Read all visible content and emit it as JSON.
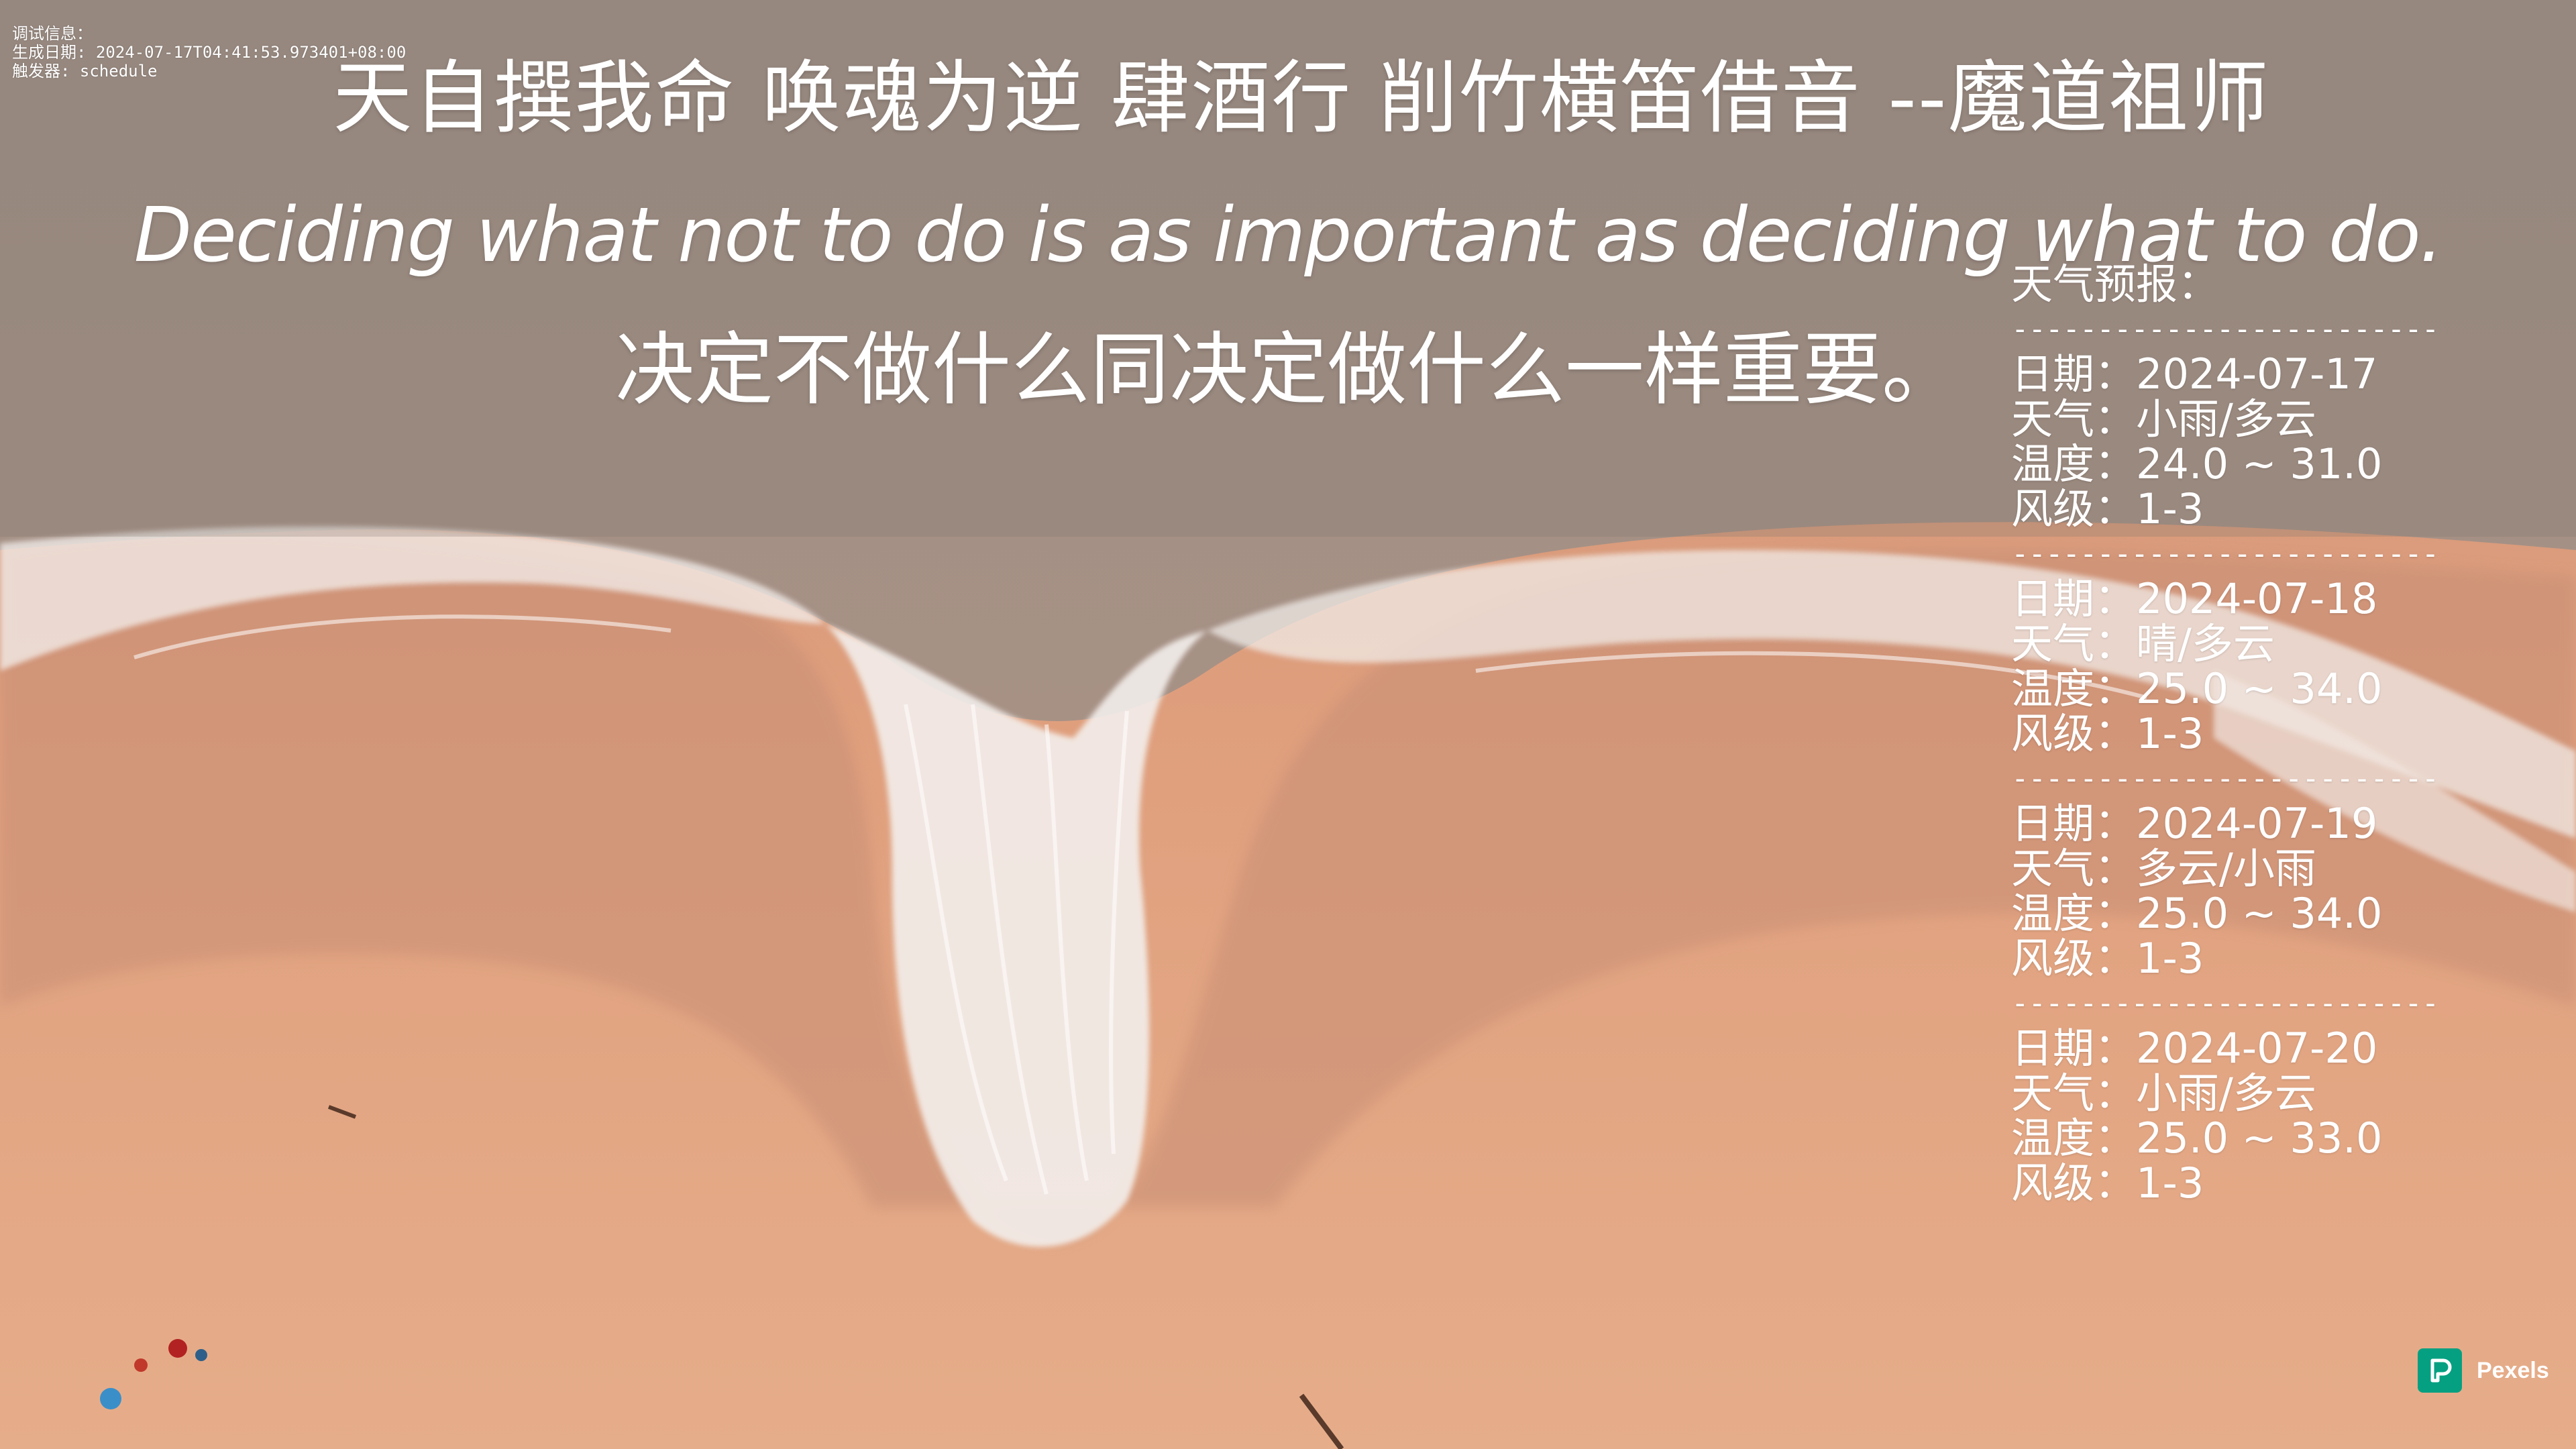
{
  "debug": {
    "title": "调试信息：",
    "generated": "生成日期: 2024-07-17T04:41:53.973401+08:00",
    "trigger": "触发器: schedule"
  },
  "quote": {
    "cn": "天自撰我命 唤魂为逆 肆酒行 削竹横笛借音   --魔道祖师",
    "en": "Deciding what not to do is as important as deciding what to do.",
    "translation": "决定不做什么同决定做什么一样重要。"
  },
  "weather": {
    "title": "天气预报：",
    "separator": "-----------------------------",
    "days": [
      {
        "date": "日期：2024-07-17",
        "weather": "天气：小雨/多云",
        "temp": "温度：24.0 ~ 31.0",
        "wind": "风级：1-3"
      },
      {
        "date": "日期：2024-07-18",
        "weather": "天气：晴/多云",
        "temp": "温度：25.0 ~ 34.0",
        "wind": "风级：1-3"
      },
      {
        "date": "日期：2024-07-19",
        "weather": "天气：多云/小雨",
        "temp": "温度：25.0 ~ 34.0",
        "wind": "风级：1-3"
      },
      {
        "date": "日期：2024-07-20",
        "weather": "天气：小雨/多云",
        "temp": "温度：25.0 ~ 33.0",
        "wind": "风级：1-3"
      }
    ]
  },
  "watermark": {
    "label": "Pexels"
  },
  "colors": {
    "sand": "#e3a883",
    "wet_sand": "#c98f73",
    "sea": "#a89488",
    "foam": "#f4f1ef",
    "brand": "#05a081"
  }
}
